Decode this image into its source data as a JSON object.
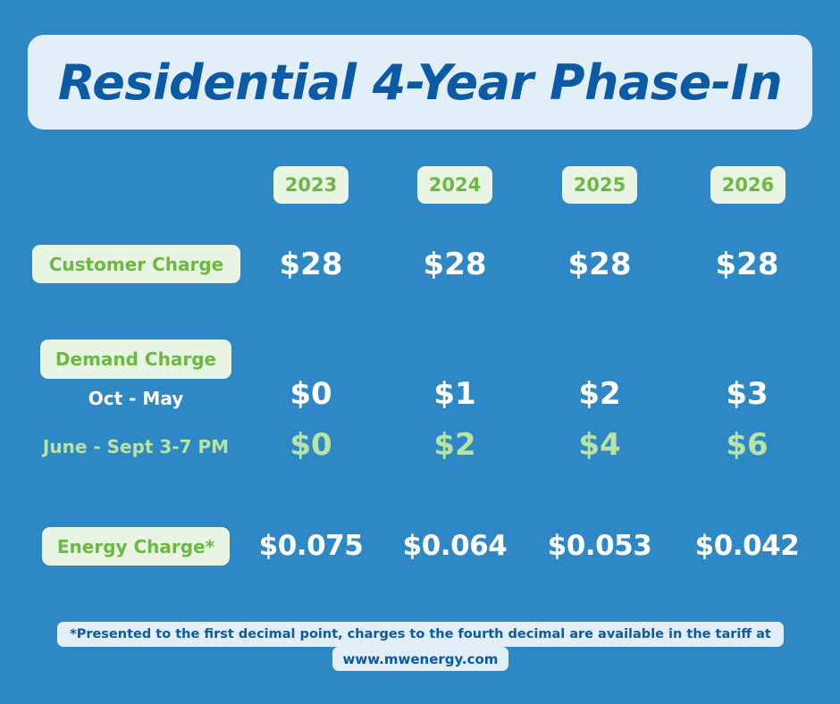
{
  "title": "Residential 4-Year Phase-In",
  "years": [
    "2023",
    "2024",
    "2025",
    "2026"
  ],
  "customer_charge": {
    "label": "Customer Charge",
    "values": [
      "$28",
      "$28",
      "$28",
      "$28"
    ]
  },
  "demand_charge": {
    "label": "Demand Charge",
    "oct_may": {
      "label": "Oct - May",
      "values": [
        "$0",
        "$1",
        "$2",
        "$3"
      ]
    },
    "june_sept": {
      "label": "June - Sept 3-7 PM",
      "values": [
        "$0",
        "$2",
        "$4",
        "$6"
      ]
    }
  },
  "energy_charge": {
    "label": "Energy Charge*",
    "values": [
      "$0.075",
      "$0.064",
      "$0.053",
      "$0.042"
    ]
  },
  "footnote": {
    "line1": "*Presented to the first decimal point, charges to the fourth decimal are available in the tariff at",
    "line2": "www.mwenergy.com"
  },
  "colors": {
    "background": "#2e88c5",
    "title_text": "#0a5aa6",
    "pill_bg": "#e9f5e4",
    "pill_text": "#6bb843",
    "summer_values": "#b7e3a3"
  }
}
